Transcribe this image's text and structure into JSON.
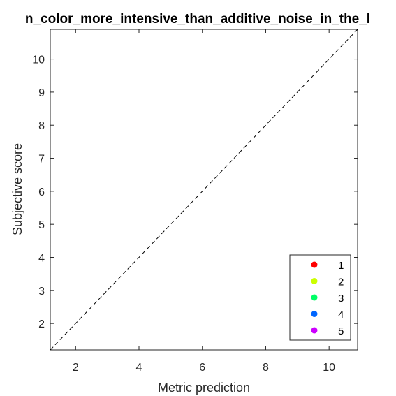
{
  "chart_data": {
    "type": "scatter",
    "title": "n_color_more_intensive_than_additive_noise_in_the_l",
    "xlabel": "Metric prediction",
    "ylabel": "Subjective score",
    "xlim": [
      1.2,
      10.9
    ],
    "ylim": [
      1.2,
      10.9
    ],
    "xticks": [
      2,
      4,
      6,
      8,
      10
    ],
    "yticks": [
      2,
      3,
      4,
      5,
      6,
      7,
      8,
      9,
      10
    ],
    "reference_line": "y = x (dashed)",
    "grid": false,
    "legend_position": "bottom-right",
    "series": [
      {
        "name": "1",
        "color": "#ff0000",
        "points": []
      },
      {
        "name": "2",
        "color": "#ccff00",
        "points": []
      },
      {
        "name": "3",
        "color": "#00ff66",
        "points": []
      },
      {
        "name": "4",
        "color": "#0066ff",
        "points": []
      },
      {
        "name": "5",
        "color": "#cc00ff",
        "points": []
      }
    ]
  }
}
